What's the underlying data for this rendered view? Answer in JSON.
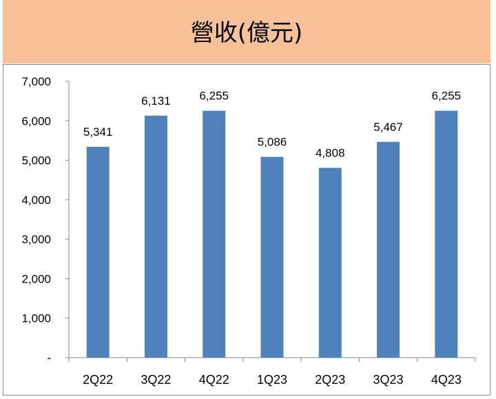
{
  "chart_data": {
    "type": "bar",
    "title": "營收(億元)",
    "categories": [
      "2Q22",
      "3Q22",
      "4Q22",
      "1Q23",
      "2Q23",
      "3Q23",
      "4Q23"
    ],
    "values": [
      5341,
      6131,
      6255,
      5086,
      4808,
      5467,
      6255
    ],
    "data_labels": [
      "5,341",
      "6,131",
      "6,255",
      "5,086",
      "4,808",
      "5,467",
      "6,255"
    ],
    "ylim": [
      0,
      7000
    ],
    "yticks": [
      0,
      1000,
      2000,
      3000,
      4000,
      5000,
      6000,
      7000
    ],
    "ytick_labels": [
      "-",
      "1,000",
      "2,000",
      "3,000",
      "4,000",
      "5,000",
      "6,000",
      "7,000"
    ],
    "grid": false,
    "legend": "none",
    "bar_color": "#4f81bd",
    "header_color": "#f9c197"
  }
}
